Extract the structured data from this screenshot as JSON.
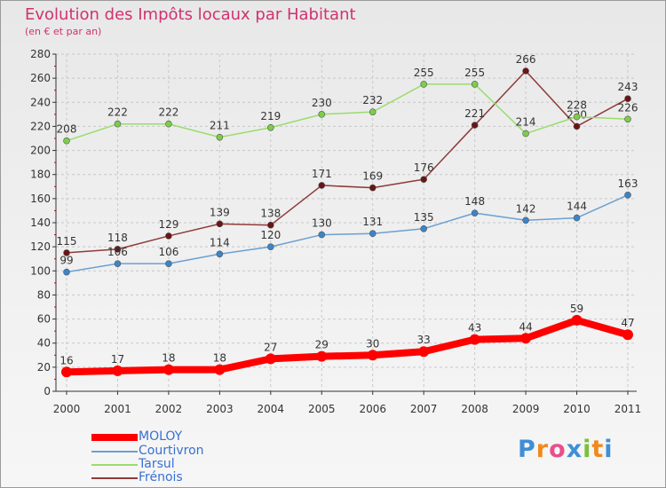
{
  "title": "Evolution des Impôts locaux par Habitant",
  "subtitle": "(en € et par an)",
  "brand": {
    "text": "Proxiti",
    "letters": [
      "P",
      "r",
      "o",
      "x",
      "i",
      "t",
      "i"
    ],
    "colors": [
      "#3e8fd6",
      "#f08a1d",
      "#e84f8c",
      "#3e8fd6",
      "#7cbf3d",
      "#f08a1d",
      "#3e8fd6"
    ]
  },
  "chart_data": {
    "type": "line",
    "title": "Evolution des Impôts locaux par Habitant",
    "subtitle": "(en € et par an)",
    "xlabel": "",
    "ylabel": "",
    "categories": [
      "2000",
      "2001",
      "2002",
      "2003",
      "2004",
      "2005",
      "2006",
      "2007",
      "2008",
      "2009",
      "2010",
      "2011"
    ],
    "ylim": [
      0,
      280
    ],
    "yticks": [
      0,
      20,
      40,
      60,
      80,
      100,
      120,
      140,
      160,
      180,
      200,
      220,
      240,
      260,
      280
    ],
    "grid": true,
    "legend_position": "bottom-left",
    "series": [
      {
        "name": "MOLOY",
        "color": "#ff0000",
        "marker": "#ff0000",
        "bold": true,
        "values": [
          16,
          17,
          18,
          18,
          27,
          29,
          30,
          33,
          43,
          44,
          59,
          47
        ]
      },
      {
        "name": "Courtivron",
        "color": "#6aa0d2",
        "marker": "#3a85c9",
        "values": [
          99,
          106,
          106,
          114,
          120,
          130,
          131,
          135,
          148,
          142,
          144,
          163
        ]
      },
      {
        "name": "Tarsul",
        "color": "#9bdc6c",
        "marker": "#7ccd4a",
        "values": [
          208,
          222,
          222,
          211,
          219,
          230,
          232,
          255,
          255,
          214,
          228,
          226
        ]
      },
      {
        "name": "Frénois",
        "color": "#8e3a3a",
        "marker": "#6a1414",
        "values": [
          115,
          118,
          129,
          139,
          138,
          171,
          169,
          176,
          221,
          266,
          220,
          243
        ]
      }
    ]
  }
}
